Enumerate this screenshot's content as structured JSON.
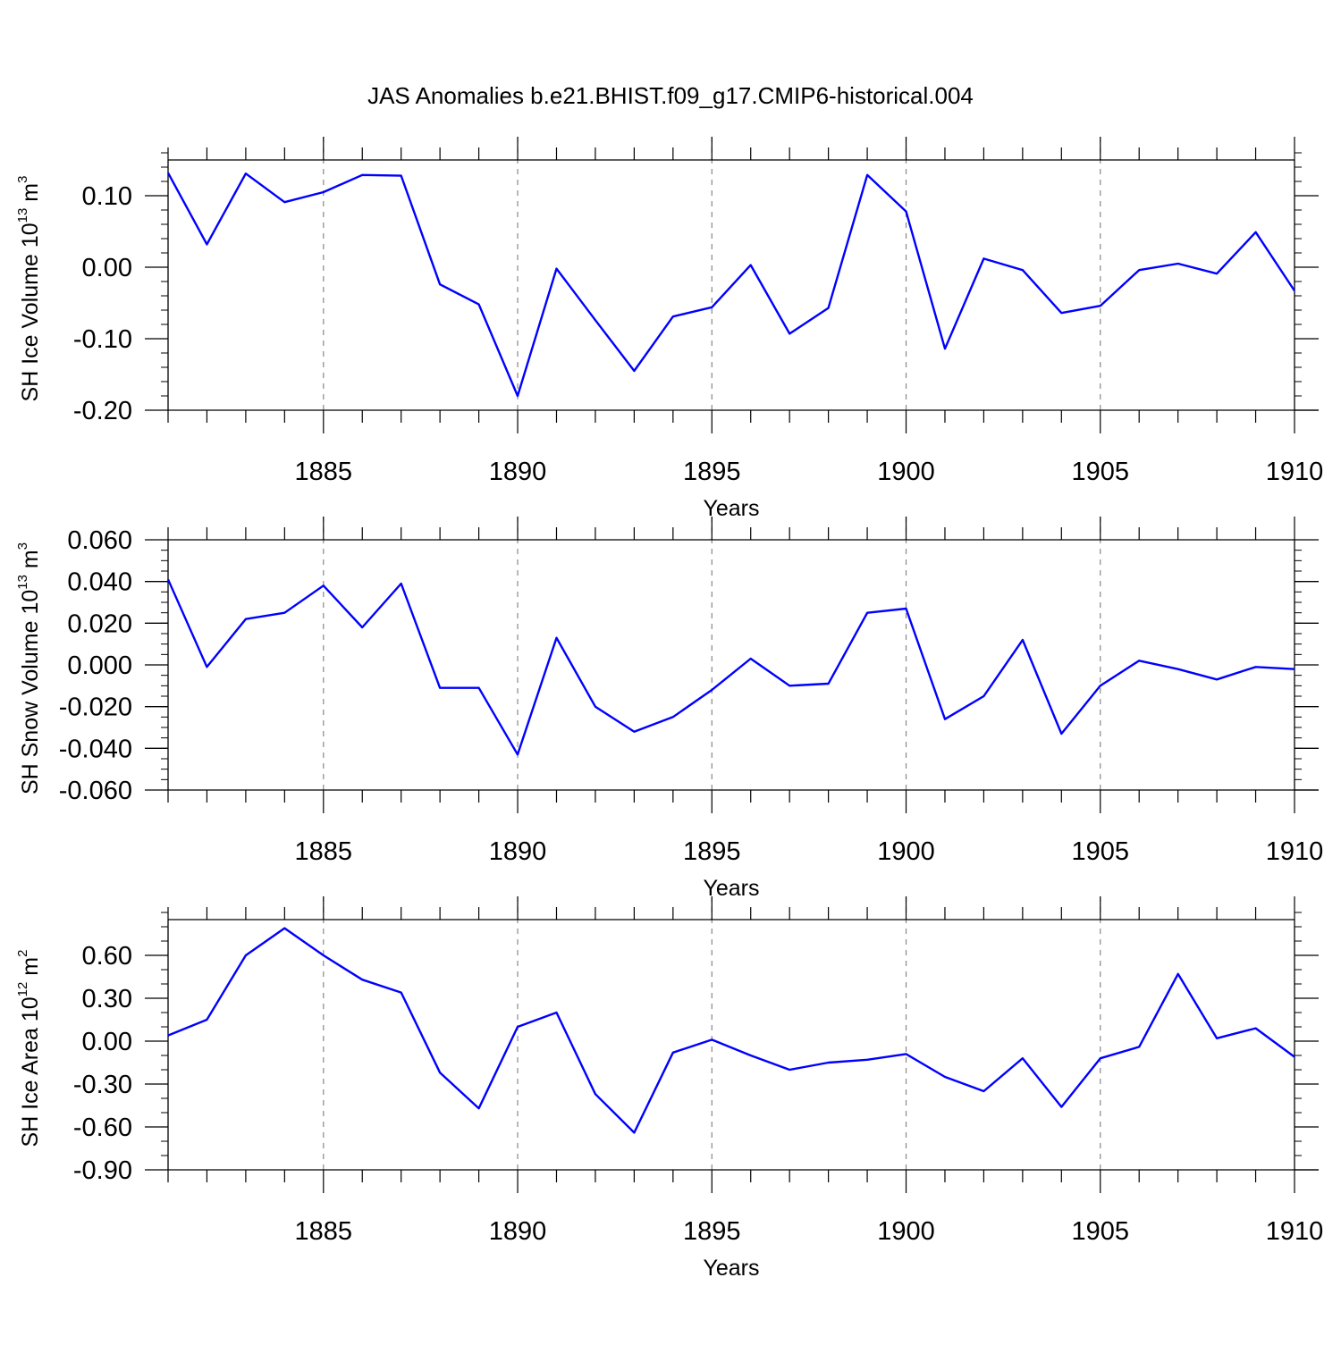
{
  "title": "JAS Anomalies b.e21.BHIST.f09_g17.CMIP6-historical.004",
  "line_color": "#0000ff",
  "grid_color": "#888888",
  "chart_data": [
    {
      "type": "line",
      "ylabel": {
        "text": "SH Ice Volume 10",
        "sup": "13",
        "unit": " m",
        "unit_sup": "3"
      },
      "xlabel": "Years",
      "xlim": [
        1881,
        1910
      ],
      "ylim": [
        -0.2,
        0.15
      ],
      "yticks": [
        -0.2,
        -0.1,
        0.0,
        0.1
      ],
      "ytick_labels": [
        "-0.20",
        "-0.10",
        "0.00",
        "0.10"
      ],
      "yminor_step": 0.02,
      "xticks": [
        1885,
        1890,
        1895,
        1900,
        1905,
        1910
      ],
      "xtick_labels": [
        "1885",
        "1890",
        "1895",
        "1900",
        "1905",
        "1910"
      ],
      "x": [
        1881,
        1882,
        1883,
        1884,
        1885,
        1886,
        1887,
        1888,
        1889,
        1890,
        1891,
        1892,
        1893,
        1894,
        1895,
        1896,
        1897,
        1898,
        1899,
        1900,
        1901,
        1902,
        1903,
        1904,
        1905,
        1906,
        1907,
        1908,
        1909,
        1910
      ],
      "values": [
        0.132,
        0.032,
        0.131,
        0.091,
        0.105,
        0.129,
        0.128,
        -0.024,
        -0.052,
        -0.18,
        -0.002,
        -0.074,
        -0.145,
        -0.069,
        -0.056,
        0.003,
        -0.093,
        -0.057,
        0.129,
        0.078,
        -0.114,
        0.012,
        -0.004,
        -0.064,
        -0.054,
        -0.004,
        0.005,
        -0.009,
        0.049,
        -0.033
      ]
    },
    {
      "type": "line",
      "ylabel": {
        "text": "SH Snow Volume 10",
        "sup": "13",
        "unit": " m",
        "unit_sup": "3"
      },
      "xlabel": "Years",
      "xlim": [
        1881,
        1910
      ],
      "ylim": [
        -0.06,
        0.06
      ],
      "yticks": [
        -0.06,
        -0.04,
        -0.02,
        0.0,
        0.02,
        0.04,
        0.06
      ],
      "ytick_labels": [
        "-0.060",
        "-0.040",
        "-0.020",
        "0.000",
        "0.020",
        "0.040",
        "0.060"
      ],
      "yminor_step": 0.005,
      "xticks": [
        1885,
        1890,
        1895,
        1900,
        1905,
        1910
      ],
      "xtick_labels": [
        "1885",
        "1890",
        "1895",
        "1900",
        "1905",
        "1910"
      ],
      "x": [
        1881,
        1882,
        1883,
        1884,
        1885,
        1886,
        1887,
        1888,
        1889,
        1890,
        1891,
        1892,
        1893,
        1894,
        1895,
        1896,
        1897,
        1898,
        1899,
        1900,
        1901,
        1902,
        1903,
        1904,
        1905,
        1906,
        1907,
        1908,
        1909,
        1910
      ],
      "values": [
        0.041,
        -0.001,
        0.022,
        0.025,
        0.038,
        0.018,
        0.039,
        -0.011,
        -0.011,
        -0.043,
        0.013,
        -0.02,
        -0.032,
        -0.025,
        -0.012,
        0.003,
        -0.01,
        -0.009,
        0.025,
        0.027,
        -0.026,
        -0.015,
        0.012,
        -0.033,
        -0.01,
        0.002,
        -0.002,
        -0.007,
        -0.001,
        -0.002
      ]
    },
    {
      "type": "line",
      "ylabel": {
        "text": "SH Ice Area 10",
        "sup": "12",
        "unit": " m",
        "unit_sup": "2"
      },
      "xlabel": "Years",
      "xlim": [
        1881,
        1910
      ],
      "ylim": [
        -0.9,
        0.85
      ],
      "yticks": [
        -0.9,
        -0.6,
        -0.3,
        0.0,
        0.3,
        0.6
      ],
      "ytick_labels": [
        "-0.90",
        "-0.60",
        "-0.30",
        "0.00",
        "0.30",
        "0.60"
      ],
      "yminor_step": 0.1,
      "xticks": [
        1885,
        1890,
        1895,
        1900,
        1905,
        1910
      ],
      "xtick_labels": [
        "1885",
        "1890",
        "1895",
        "1900",
        "1905",
        "1910"
      ],
      "x": [
        1881,
        1882,
        1883,
        1884,
        1885,
        1886,
        1887,
        1888,
        1889,
        1890,
        1891,
        1892,
        1893,
        1894,
        1895,
        1896,
        1897,
        1898,
        1899,
        1900,
        1901,
        1902,
        1903,
        1904,
        1905,
        1906,
        1907,
        1908,
        1909,
        1910
      ],
      "values": [
        0.04,
        0.15,
        0.6,
        0.79,
        0.6,
        0.43,
        0.34,
        -0.22,
        -0.47,
        0.1,
        0.2,
        -0.37,
        -0.64,
        -0.08,
        0.01,
        -0.1,
        -0.2,
        -0.15,
        -0.13,
        -0.09,
        -0.25,
        -0.35,
        -0.12,
        -0.46,
        -0.12,
        -0.04,
        0.47,
        0.02,
        0.09,
        -0.11
      ]
    }
  ]
}
